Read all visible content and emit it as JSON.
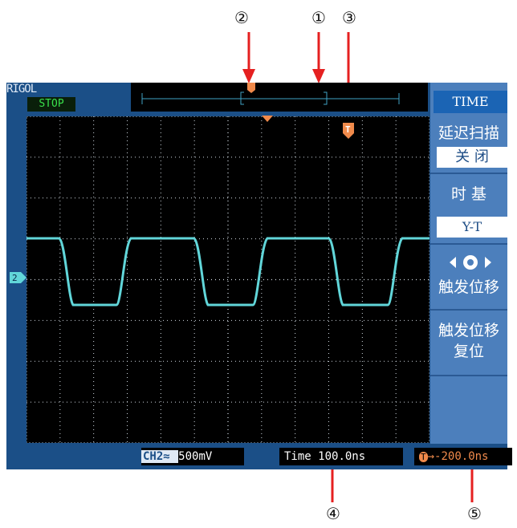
{
  "callouts": [
    "②",
    "①",
    "③",
    "④",
    "⑤"
  ],
  "scope": {
    "brand": "RIGOL",
    "status": "STOP",
    "channel_marker": "2",
    "trigger_marker": "T",
    "menu": {
      "title": "TIME",
      "items": [
        {
          "label": "延迟扫描",
          "value": "关 闭"
        },
        {
          "label": "时 基",
          "value": "Y-T"
        },
        {
          "label": "触发位移",
          "icon": "knob-icon"
        },
        {
          "label": "触发位移",
          "label2": "复位"
        }
      ]
    },
    "bottom": {
      "channel": "CH2",
      "coupling": "≈",
      "volts": "500mV",
      "time_label": "Time",
      "time_value": "100.0ns",
      "trigger_offset": "→-200.0ns"
    },
    "colors": {
      "trace": "#61d6d9",
      "accent": "#f08a4b",
      "frame": "#1b4f87",
      "menu": "#4c7fbc"
    }
  }
}
